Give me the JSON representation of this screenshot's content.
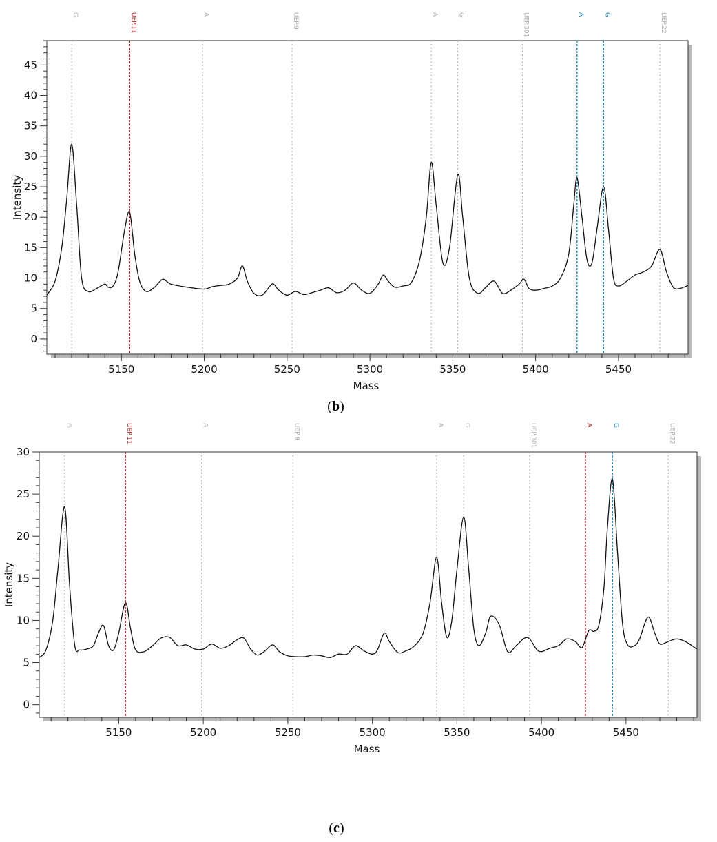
{
  "chart_data": [
    {
      "type": "line",
      "panel_label": "b",
      "xlabel": "Mass",
      "ylabel": "Intensity",
      "xlim": [
        5105,
        5492
      ],
      "ylim": [
        -2.5,
        49
      ],
      "xticks": [
        5150,
        5200,
        5250,
        5300,
        5350,
        5400,
        5450
      ],
      "yticks": [
        0,
        5,
        10,
        15,
        20,
        25,
        30,
        35,
        40,
        45
      ],
      "grid": false,
      "markers": [
        {
          "label": "G",
          "x": 5120,
          "color": "#aaaaaa"
        },
        {
          "label": "UEP.11",
          "x": 5155,
          "color": "#b22222"
        },
        {
          "label": "A",
          "x": 5199,
          "color": "#aaaaaa"
        },
        {
          "label": "UEP.9",
          "x": 5253,
          "color": "#aaaaaa"
        },
        {
          "label": "A",
          "x": 5337,
          "color": "#aaaaaa"
        },
        {
          "label": "G",
          "x": 5353,
          "color": "#aaaaaa"
        },
        {
          "label": "UEP.301",
          "x": 5392,
          "color": "#aaaaaa"
        },
        {
          "label": "A",
          "x": 5425,
          "color": "#1e8bc3"
        },
        {
          "label": "G",
          "x": 5441,
          "color": "#1e8bc3"
        },
        {
          "label": "UEP.22",
          "x": 5475,
          "color": "#aaaaaa"
        }
      ],
      "series": [
        {
          "x": [
            5105,
            5110,
            5114,
            5117,
            5120,
            5123,
            5126,
            5130,
            5135,
            5140,
            5142,
            5145,
            5148,
            5152,
            5155,
            5158,
            5161,
            5165,
            5170,
            5175,
            5180,
            5190,
            5200,
            5205,
            5210,
            5215,
            5220,
            5223,
            5226,
            5230,
            5235,
            5240,
            5242,
            5245,
            5250,
            5255,
            5260,
            5265,
            5270,
            5275,
            5280,
            5285,
            5290,
            5295,
            5300,
            5305,
            5308,
            5311,
            5315,
            5320,
            5325,
            5330,
            5334,
            5337,
            5340,
            5344,
            5348,
            5353,
            5356,
            5360,
            5365,
            5370,
            5375,
            5380,
            5385,
            5390,
            5393,
            5396,
            5400,
            5405,
            5410,
            5415,
            5420,
            5423,
            5425,
            5428,
            5431,
            5434,
            5437,
            5441,
            5444,
            5447,
            5450,
            5455,
            5460,
            5465,
            5470,
            5475,
            5479,
            5483,
            5487,
            5492
          ],
          "y": [
            7.2,
            9.5,
            15,
            23,
            32,
            22,
            10,
            7.8,
            8.3,
            9.0,
            8.5,
            8.7,
            11,
            18,
            20.8,
            14,
            9.5,
            7.8,
            8.5,
            9.8,
            9.0,
            8.5,
            8.2,
            8.6,
            8.8,
            9.0,
            10.0,
            12.0,
            9.5,
            7.5,
            7.2,
            8.8,
            9.0,
            8.0,
            7.2,
            7.8,
            7.3,
            7.6,
            8.0,
            8.4,
            7.6,
            8.0,
            9.2,
            8.0,
            7.5,
            9.0,
            10.5,
            9.5,
            8.5,
            8.7,
            9.3,
            13.0,
            20.0,
            29.0,
            22.0,
            12.5,
            15.0,
            27.0,
            20.0,
            10.0,
            7.5,
            8.5,
            9.5,
            7.5,
            8.0,
            9.0,
            9.8,
            8.3,
            8.0,
            8.3,
            8.7,
            10.0,
            14.0,
            22.0,
            26.5,
            20.0,
            13.0,
            12.5,
            18.0,
            25.0,
            18.0,
            10.0,
            8.7,
            9.5,
            10.5,
            11.0,
            12.0,
            14.7,
            11.0,
            8.5,
            8.3,
            8.8
          ]
        }
      ]
    },
    {
      "type": "line",
      "panel_label": "c",
      "xlabel": "Mass",
      "ylabel": "Intensity",
      "xlim": [
        5103,
        5492
      ],
      "ylim": [
        -1.5,
        30
      ],
      "xticks": [
        5150,
        5200,
        5250,
        5300,
        5350,
        5400,
        5450
      ],
      "yticks": [
        0,
        5,
        10,
        15,
        20,
        25,
        30
      ],
      "grid": false,
      "markers": [
        {
          "label": "G",
          "x": 5118,
          "color": "#aaaaaa"
        },
        {
          "label": "UEP.11",
          "x": 5154,
          "color": "#b22222"
        },
        {
          "label": "A",
          "x": 5199,
          "color": "#aaaaaa"
        },
        {
          "label": "UEP.9",
          "x": 5253,
          "color": "#aaaaaa"
        },
        {
          "label": "A",
          "x": 5338,
          "color": "#aaaaaa"
        },
        {
          "label": "G",
          "x": 5354,
          "color": "#aaaaaa"
        },
        {
          "label": "UEP.301",
          "x": 5393,
          "color": "#aaaaaa"
        },
        {
          "label": "A",
          "x": 5426,
          "color": "#b22222"
        },
        {
          "label": "G",
          "x": 5442,
          "color": "#1e8bc3"
        },
        {
          "label": "UEP.22",
          "x": 5475,
          "color": "#aaaaaa"
        }
      ],
      "series": [
        {
          "x": [
            5103,
            5107,
            5111,
            5114,
            5118,
            5121,
            5124,
            5127,
            5131,
            5135,
            5138,
            5141,
            5144,
            5147,
            5150,
            5154,
            5157,
            5160,
            5165,
            5170,
            5175,
            5180,
            5185,
            5190,
            5195,
            5200,
            5205,
            5210,
            5215,
            5220,
            5224,
            5228,
            5232,
            5236,
            5241,
            5245,
            5250,
            5255,
            5260,
            5265,
            5270,
            5275,
            5280,
            5285,
            5290,
            5295,
            5300,
            5303,
            5307,
            5310,
            5315,
            5320,
            5325,
            5330,
            5334,
            5338,
            5341,
            5344,
            5347,
            5350,
            5354,
            5357,
            5360,
            5363,
            5367,
            5370,
            5375,
            5380,
            5385,
            5390,
            5393,
            5397,
            5400,
            5405,
            5410,
            5415,
            5420,
            5424,
            5428,
            5431,
            5434,
            5437,
            5439,
            5442,
            5445,
            5448,
            5451,
            5455,
            5458,
            5463,
            5467,
            5470,
            5475,
            5480,
            5485,
            5492
          ],
          "y": [
            5.6,
            6.5,
            10.0,
            16.0,
            23.5,
            14.0,
            7.0,
            6.5,
            6.6,
            7.0,
            8.5,
            9.4,
            7.0,
            6.5,
            8.5,
            12.1,
            9.0,
            6.5,
            6.3,
            7.0,
            7.9,
            8.0,
            7.0,
            7.1,
            6.6,
            6.6,
            7.2,
            6.7,
            7.0,
            7.7,
            7.9,
            6.6,
            5.9,
            6.3,
            7.1,
            6.3,
            5.8,
            5.7,
            5.7,
            5.9,
            5.8,
            5.6,
            6.0,
            6.0,
            7.0,
            6.4,
            6.0,
            6.5,
            8.5,
            7.5,
            6.2,
            6.4,
            7.0,
            8.5,
            12.0,
            17.5,
            12.0,
            8.0,
            10.0,
            16.0,
            22.3,
            16.0,
            9.0,
            7.0,
            8.5,
            10.5,
            9.5,
            6.3,
            7.0,
            7.9,
            7.8,
            6.6,
            6.3,
            6.7,
            7.0,
            7.8,
            7.5,
            6.8,
            8.8,
            8.7,
            9.5,
            14.0,
            21.0,
            26.8,
            18.0,
            9.5,
            7.1,
            7.0,
            7.8,
            10.4,
            8.5,
            7.2,
            7.5,
            7.8,
            7.5,
            6.6
          ]
        }
      ]
    }
  ]
}
